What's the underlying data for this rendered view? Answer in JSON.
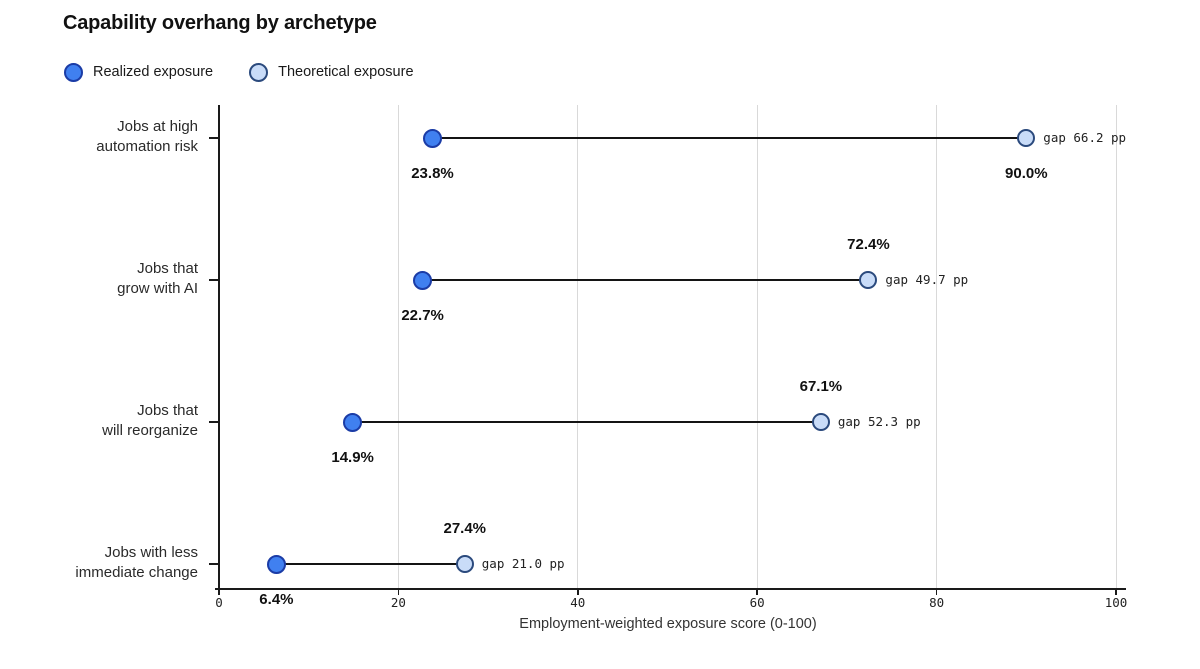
{
  "title": "Capability overhang by archetype",
  "legend": {
    "items": [
      {
        "label": "Realized exposure",
        "fill": "#4080f0",
        "stroke": "#1b3ca6"
      },
      {
        "label": "Theoretical exposure",
        "fill": "#c9dcf8",
        "stroke": "#2b4a7d"
      }
    ]
  },
  "chart_data": {
    "type": "dumbbell",
    "title": "Capability overhang by archetype",
    "xlabel": "Employment-weighted exposure score (0-100)",
    "ylabel": "",
    "xlim": [
      0,
      100
    ],
    "xticks": [
      "0",
      "20",
      "40",
      "60",
      "80",
      "100"
    ],
    "xtick_values": [
      0,
      20,
      40,
      60,
      80,
      100
    ],
    "grid": "vertical",
    "legend_position": "top-left",
    "series_names": [
      "Realized exposure",
      "Theoretical exposure"
    ],
    "rows": [
      {
        "category": "Jobs at high\nautomation risk",
        "realized": 23.8,
        "theoretical": 90.0,
        "realized_label": "23.8%",
        "theoretical_label": "90.0%",
        "gap_label": "gap 66.2 pp",
        "theoretical_label_side": "below"
      },
      {
        "category": "Jobs that\ngrow with AI",
        "realized": 22.7,
        "theoretical": 72.4,
        "realized_label": "22.7%",
        "theoretical_label": "72.4%",
        "gap_label": "gap 49.7 pp",
        "theoretical_label_side": "above"
      },
      {
        "category": "Jobs that\nwill reorganize",
        "realized": 14.9,
        "theoretical": 67.1,
        "realized_label": "14.9%",
        "theoretical_label": "67.1%",
        "gap_label": "gap 52.3 pp",
        "theoretical_label_side": "above"
      },
      {
        "category": "Jobs with less\nimmediate change",
        "realized": 6.4,
        "theoretical": 27.4,
        "realized_label": "6.4%",
        "theoretical_label": "27.4%",
        "gap_label": "gap 21.0 pp",
        "theoretical_label_side": "above"
      }
    ],
    "colors": {
      "realized_fill": "#4080f0",
      "realized_stroke": "#1b3ca6",
      "theoretical_fill": "#c9dcf8",
      "theoretical_stroke": "#2b4a7d",
      "connector": "#141414",
      "gridline": "#d9d9d9",
      "axis": "#1a1a1a"
    }
  }
}
